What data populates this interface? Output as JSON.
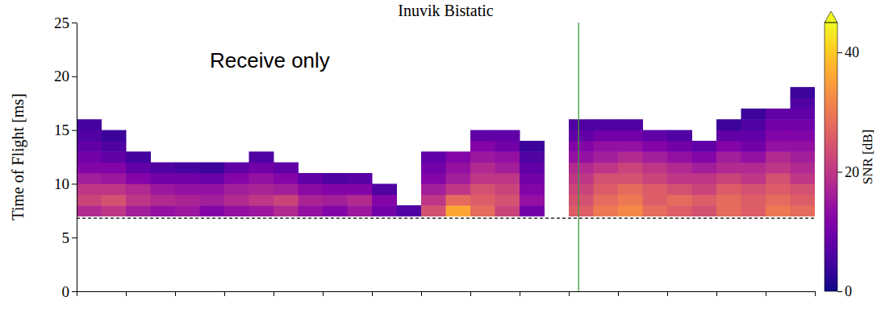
{
  "chart_data": {
    "type": "heatmap",
    "title": "Inuvik Bistatic",
    "y_label": "Time of Flight [ms]",
    "annotation": "Receive only",
    "x_bins": [
      0,
      1,
      2,
      3,
      4,
      5,
      6,
      7,
      8,
      9,
      10,
      11,
      12,
      13,
      14,
      15,
      16,
      17,
      18,
      19,
      20,
      21,
      22,
      23,
      24,
      25,
      26,
      27,
      28,
      29,
      30
    ],
    "y_bins": [
      7,
      8,
      9,
      10,
      11,
      12,
      13,
      14,
      15,
      16,
      17,
      18,
      19
    ],
    "z": [
      [
        18,
        20,
        16,
        14,
        15,
        12,
        14,
        15,
        18,
        14,
        12,
        15,
        10,
        6,
        24,
        36,
        28,
        22,
        10,
        null,
        26,
        30,
        32,
        28,
        26,
        24,
        28,
        26,
        30,
        28
      ],
      [
        22,
        24,
        20,
        18,
        17,
        16,
        18,
        20,
        22,
        17,
        16,
        18,
        12,
        null,
        20,
        28,
        26,
        24,
        14,
        null,
        24,
        28,
        30,
        26,
        28,
        26,
        28,
        26,
        28,
        26
      ],
      [
        20,
        20,
        18,
        15,
        14,
        14,
        16,
        17,
        16,
        13,
        12,
        12,
        6,
        null,
        16,
        20,
        24,
        22,
        12,
        null,
        22,
        26,
        28,
        26,
        24,
        22,
        26,
        24,
        26,
        24
      ],
      [
        16,
        15,
        12,
        10,
        10,
        9,
        12,
        14,
        12,
        8,
        6,
        7,
        null,
        null,
        12,
        16,
        20,
        20,
        10,
        null,
        20,
        24,
        24,
        22,
        20,
        20,
        22,
        20,
        24,
        20
      ],
      [
        12,
        12,
        8,
        6,
        5,
        4,
        8,
        10,
        8,
        null,
        null,
        null,
        null,
        null,
        10,
        14,
        18,
        16,
        8,
        null,
        18,
        20,
        22,
        20,
        18,
        16,
        18,
        18,
        20,
        18
      ],
      [
        10,
        8,
        5,
        null,
        null,
        null,
        null,
        6,
        null,
        null,
        null,
        null,
        null,
        null,
        8,
        12,
        15,
        14,
        6,
        null,
        14,
        16,
        18,
        16,
        14,
        12,
        16,
        14,
        18,
        16
      ],
      [
        8,
        6,
        null,
        null,
        null,
        null,
        null,
        null,
        null,
        null,
        null,
        null,
        null,
        null,
        null,
        null,
        12,
        10,
        4,
        null,
        12,
        14,
        14,
        12,
        10,
        8,
        12,
        10,
        14,
        14
      ],
      [
        6,
        4,
        null,
        null,
        null,
        null,
        null,
        null,
        null,
        null,
        null,
        null,
        null,
        null,
        null,
        null,
        8,
        8,
        null,
        null,
        8,
        10,
        10,
        8,
        6,
        null,
        8,
        8,
        12,
        12
      ],
      [
        5,
        null,
        null,
        null,
        null,
        null,
        null,
        null,
        null,
        null,
        null,
        null,
        null,
        null,
        null,
        null,
        null,
        null,
        null,
        null,
        6,
        6,
        6,
        null,
        null,
        null,
        4,
        6,
        10,
        10
      ],
      [
        null,
        null,
        null,
        null,
        null,
        null,
        null,
        null,
        null,
        null,
        null,
        null,
        null,
        null,
        null,
        null,
        null,
        null,
        null,
        null,
        null,
        null,
        null,
        null,
        null,
        null,
        null,
        4,
        8,
        8
      ],
      [
        null,
        null,
        null,
        null,
        null,
        null,
        null,
        null,
        null,
        null,
        null,
        null,
        null,
        null,
        null,
        null,
        null,
        null,
        null,
        null,
        null,
        null,
        null,
        null,
        null,
        null,
        null,
        null,
        null,
        6
      ],
      [
        null,
        null,
        null,
        null,
        null,
        null,
        null,
        null,
        null,
        null,
        null,
        null,
        null,
        null,
        null,
        null,
        null,
        null,
        null,
        null,
        null,
        null,
        null,
        null,
        null,
        null,
        null,
        null,
        null,
        4
      ]
    ],
    "xlim": [
      0,
      30
    ],
    "xticks": [
      0,
      2,
      4,
      6,
      8,
      10,
      12,
      14,
      16,
      18,
      20,
      22,
      24,
      26,
      28,
      30
    ],
    "ylim": [
      0,
      25
    ],
    "yticks": [
      0,
      5,
      10,
      15,
      20,
      25
    ],
    "tick_labels": "y",
    "hline": 6.8,
    "vline": 20.4,
    "colorbar": {
      "label": "SNR [dB]",
      "range": [
        0,
        45
      ],
      "ticks": [
        0,
        20,
        40
      ]
    }
  }
}
